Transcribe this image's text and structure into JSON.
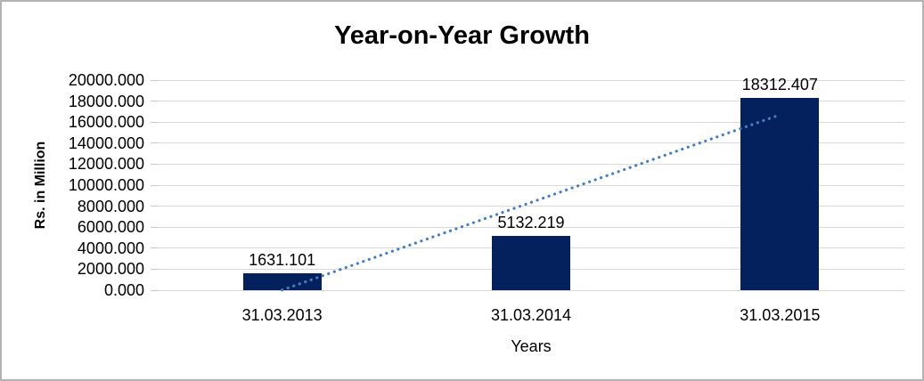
{
  "chart_data": {
    "type": "bar",
    "title": "Year-on-Year Growth",
    "xlabel": "Years",
    "ylabel": "Rs. in Million",
    "categories": [
      "31.03.2013",
      "31.03.2014",
      "31.03.2015"
    ],
    "values": [
      1631.101,
      5132.219,
      18312.407
    ],
    "data_labels": [
      "1631.101",
      "5132.219",
      "18312.407"
    ],
    "y_tick_labels": [
      "20000.000",
      "18000.000",
      "16000.000",
      "14000.000",
      "12000.000",
      "10000.000",
      "8000.000",
      "6000.000",
      "4000.000",
      "2000.000",
      "0.000"
    ],
    "ylim": [
      0,
      20000
    ],
    "y_tick_step": 2000,
    "grid": true,
    "legend": "none",
    "trendline": {
      "kind": "linear",
      "style": "dotted"
    },
    "colors": {
      "bar": "#04215e",
      "trendline": "#4a7ebb",
      "gridline": "#d9d9d9",
      "tick_mark": "#c9c9c9",
      "text": "#000000",
      "border": "#b3b3b3",
      "background": "#ffffff"
    }
  }
}
